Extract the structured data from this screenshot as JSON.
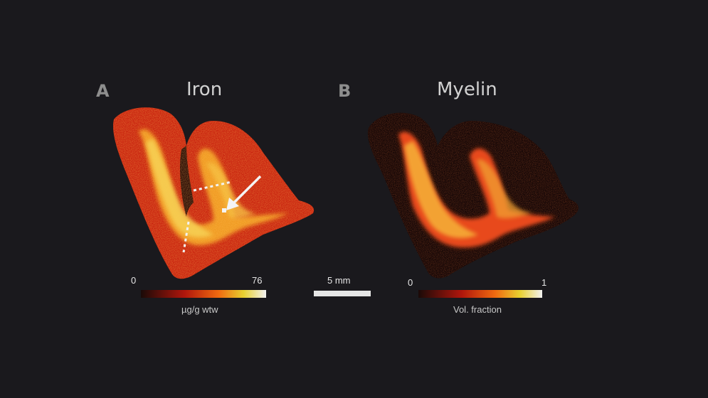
{
  "panels": [
    {
      "letter": "A",
      "title": "Iron",
      "min": "0",
      "max": "76",
      "unit": "µg/g wtw"
    },
    {
      "letter": "B",
      "title": "Myelin",
      "min": "0",
      "max": "1",
      "unit": "Vol. fraction"
    }
  ],
  "scalebar": {
    "label": "5 mm"
  },
  "colors": {
    "background": "#1a191d",
    "cmap_low": "#1a0a08",
    "cmap_mid1": "#b0160c",
    "cmap_mid2": "#f06a10",
    "cmap_mid3": "#e8d030",
    "cmap_high": "#f2f2f2"
  }
}
